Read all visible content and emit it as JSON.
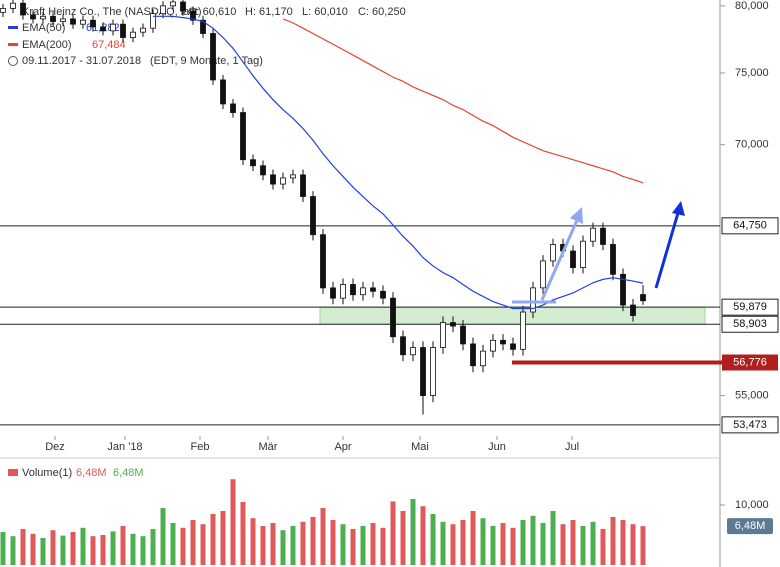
{
  "chart_data": [
    {
      "type": "candlestick",
      "title": "Kraft Heinz Co., The (NASDAQ, last)",
      "ohlc_labels": [
        "O: 60,610",
        "H: 61,170",
        "L: 60,010",
        "C: 60,250"
      ],
      "subtitle": "09.11.2017 - 31.07.2018",
      "subtitle_note": "(EDT, 9 Monate, 1 Tag)",
      "log_scale": true,
      "ylim": [
        52.7,
        80.45
      ],
      "yticks": [
        {
          "value": 55,
          "label": "55,000"
        },
        {
          "value": 70,
          "label": "70,000"
        },
        {
          "value": 75,
          "label": "75,000"
        },
        {
          "value": 80,
          "label": "80,000"
        }
      ],
      "xticks": [
        {
          "value": 5.2,
          "label": "Dez"
        },
        {
          "value": 12.2,
          "label": "Jan '18"
        },
        {
          "value": 19.7,
          "label": "Feb"
        },
        {
          "value": 26.5,
          "label": "Mär"
        },
        {
          "value": 34,
          "label": "Apr"
        },
        {
          "value": 41.7,
          "label": "Mai"
        },
        {
          "value": 49.4,
          "label": "Jun"
        },
        {
          "value": 56.9,
          "label": "Jul"
        }
      ],
      "ohlc": [
        [
          79.5,
          80.15,
          79.15,
          79.8
        ],
        [
          79.8,
          80.55,
          79.45,
          80.2
        ],
        [
          80.2,
          80.55,
          78.95,
          79.3
        ],
        [
          79.3,
          79.65,
          78.65,
          79.0
        ],
        [
          79.0,
          79.55,
          78.65,
          79.2
        ],
        [
          79.2,
          79.55,
          78.45,
          78.8
        ],
        [
          78.8,
          79.35,
          78.45,
          79.0
        ],
        [
          79.0,
          79.35,
          78.25,
          78.6
        ],
        [
          78.6,
          79.25,
          78.25,
          78.9
        ],
        [
          78.9,
          79.25,
          78.05,
          78.4
        ],
        [
          78.4,
          78.75,
          77.75,
          78.1
        ],
        [
          78.1,
          78.95,
          77.75,
          78.6
        ],
        [
          78.6,
          78.95,
          77.25,
          77.6
        ],
        [
          77.6,
          78.35,
          77.25,
          78.0
        ],
        [
          78.0,
          78.65,
          77.65,
          78.3
        ],
        [
          78.3,
          79.75,
          77.95,
          79.4
        ],
        [
          79.4,
          80.35,
          79.05,
          80.0
        ],
        [
          80.0,
          80.65,
          79.65,
          80.3
        ],
        [
          80.3,
          80.65,
          79.25,
          79.6
        ],
        [
          79.6,
          79.95,
          78.55,
          78.9
        ],
        [
          78.9,
          79.25,
          77.55,
          77.9
        ],
        [
          77.9,
          78.25,
          74.15,
          74.5
        ],
        [
          74.5,
          74.85,
          72.45,
          72.8
        ],
        [
          72.8,
          73.15,
          71.85,
          72.2
        ],
        [
          72.2,
          72.55,
          68.65,
          69.0
        ],
        [
          69.0,
          69.35,
          68.25,
          68.6
        ],
        [
          68.6,
          68.95,
          67.65,
          68.0
        ],
        [
          68.0,
          68.35,
          67.05,
          67.4
        ],
        [
          67.4,
          68.15,
          67.05,
          67.8
        ],
        [
          67.8,
          68.35,
          67.45,
          68.0
        ],
        [
          68.0,
          68.35,
          66.25,
          66.6
        ],
        [
          66.6,
          66.95,
          63.85,
          64.2
        ],
        [
          64.2,
          64.55,
          60.65,
          61.0
        ],
        [
          61.0,
          61.35,
          60.05,
          60.4
        ],
        [
          60.4,
          61.55,
          60.05,
          61.2
        ],
        [
          61.2,
          61.55,
          60.25,
          60.6
        ],
        [
          60.6,
          61.35,
          60.25,
          61.0
        ],
        [
          61.0,
          61.35,
          60.45,
          60.8
        ],
        [
          60.8,
          61.15,
          60.05,
          60.4
        ],
        [
          60.4,
          60.75,
          57.85,
          58.2
        ],
        [
          58.2,
          58.55,
          56.85,
          57.2
        ],
        [
          57.2,
          57.95,
          56.85,
          57.6
        ],
        [
          57.6,
          57.95,
          54.0,
          55.0
        ],
        [
          55.0,
          57.95,
          54.65,
          57.6
        ],
        [
          57.6,
          59.35,
          57.25,
          59.0
        ],
        [
          59.0,
          59.35,
          58.45,
          58.8
        ],
        [
          58.8,
          59.15,
          57.45,
          57.8
        ],
        [
          57.8,
          58.15,
          56.25,
          56.6
        ],
        [
          56.6,
          57.75,
          56.25,
          57.4
        ],
        [
          57.4,
          58.35,
          57.05,
          58.0
        ],
        [
          58.0,
          58.35,
          57.45,
          57.8
        ],
        [
          57.8,
          58.15,
          57.15,
          57.5
        ],
        [
          57.5,
          59.95,
          57.15,
          59.6
        ],
        [
          59.6,
          61.35,
          59.25,
          61.0
        ],
        [
          61.0,
          62.95,
          60.65,
          62.6
        ],
        [
          62.6,
          63.95,
          62.25,
          63.6
        ],
        [
          63.6,
          63.95,
          62.85,
          63.2
        ],
        [
          63.2,
          63.55,
          61.85,
          62.2
        ],
        [
          62.2,
          64.15,
          61.85,
          63.8
        ],
        [
          63.8,
          64.95,
          63.45,
          64.6
        ],
        [
          64.6,
          64.95,
          63.25,
          63.6
        ],
        [
          63.6,
          63.95,
          61.45,
          61.8
        ],
        [
          61.8,
          62.15,
          59.65,
          60.0
        ],
        [
          60.0,
          60.35,
          59.05,
          59.4
        ],
        [
          60.61,
          61.17,
          60.01,
          60.25
        ]
      ],
      "series": [
        {
          "name": "EMA(50)",
          "color": "#2040e0",
          "value_label": "61,282",
          "values": [
            null,
            null,
            null,
            null,
            null,
            null,
            null,
            null,
            null,
            null,
            null,
            null,
            null,
            null,
            null,
            79.2,
            79.2,
            79.2,
            79.1,
            79.0,
            78.8,
            78.3,
            77.6,
            76.8,
            75.8,
            74.8,
            73.9,
            73.1,
            72.4,
            71.8,
            71.1,
            70.3,
            69.4,
            68.6,
            67.9,
            67.2,
            66.6,
            66.0,
            65.5,
            64.8,
            64.1,
            63.5,
            62.8,
            62.3,
            61.9,
            61.6,
            61.2,
            60.8,
            60.5,
            60.2,
            60.0,
            59.8,
            59.8,
            59.8,
            60.0,
            60.3,
            60.5,
            60.7,
            61.0,
            61.3,
            61.5,
            61.6,
            61.5,
            61.4,
            61.28
          ]
        },
        {
          "name": "EMA(200)",
          "color": "#e8432e",
          "value_label": "67,484",
          "values": [
            null,
            null,
            null,
            null,
            null,
            null,
            null,
            null,
            null,
            null,
            null,
            null,
            null,
            null,
            null,
            null,
            null,
            null,
            null,
            null,
            null,
            null,
            null,
            null,
            null,
            null,
            null,
            null,
            79.0,
            78.7,
            78.3,
            77.9,
            77.5,
            77.1,
            76.7,
            76.3,
            75.9,
            75.5,
            75.1,
            74.7,
            74.4,
            74.0,
            73.7,
            73.4,
            73.1,
            72.7,
            72.4,
            72.0,
            71.6,
            71.3,
            70.9,
            70.5,
            70.2,
            69.9,
            69.6,
            69.4,
            69.2,
            69.0,
            68.8,
            68.6,
            68.4,
            68.2,
            67.9,
            67.7,
            67.48
          ]
        }
      ],
      "levels": [
        {
          "value": 64.75,
          "label": "64,750"
        },
        {
          "value": 59.879,
          "label": "59,879"
        },
        {
          "value": 58.903,
          "label": "58,903"
        },
        {
          "value": 53.473,
          "label": "53,473"
        }
      ],
      "support": {
        "value": 56.776,
        "label": "56,776",
        "color": "#b01e1e"
      },
      "zone_color": "#d4ecd0"
    },
    {
      "type": "volume",
      "name": "Volume(1)",
      "value_label": "6,48M",
      "ylim": [
        0,
        15.5
      ],
      "yticks": [
        {
          "value": 10,
          "label": "10,000"
        }
      ],
      "up_color": "#4caf50",
      "down_color": "#e05a5a",
      "values": [
        5.5,
        4.8,
        6.0,
        5.2,
        4.5,
        5.8,
        4.9,
        5.5,
        6.2,
        4.8,
        5.0,
        5.6,
        6.5,
        5.2,
        4.8,
        6.0,
        9.5,
        7.0,
        6.2,
        7.5,
        6.8,
        8.5,
        9.0,
        14.3,
        10.5,
        7.8,
        6.5,
        7.0,
        5.8,
        6.5,
        7.2,
        8.0,
        9.5,
        7.5,
        6.8,
        6.0,
        6.5,
        7.0,
        6.2,
        10.6,
        9.0,
        11.0,
        9.8,
        8.5,
        7.2,
        6.8,
        7.5,
        9.0,
        7.8,
        6.5,
        7.0,
        6.2,
        7.5,
        8.2,
        7.0,
        9.0,
        6.8,
        7.5,
        6.5,
        7.2,
        6.0,
        8.0,
        7.5,
        6.8,
        6.48
      ]
    }
  ]
}
